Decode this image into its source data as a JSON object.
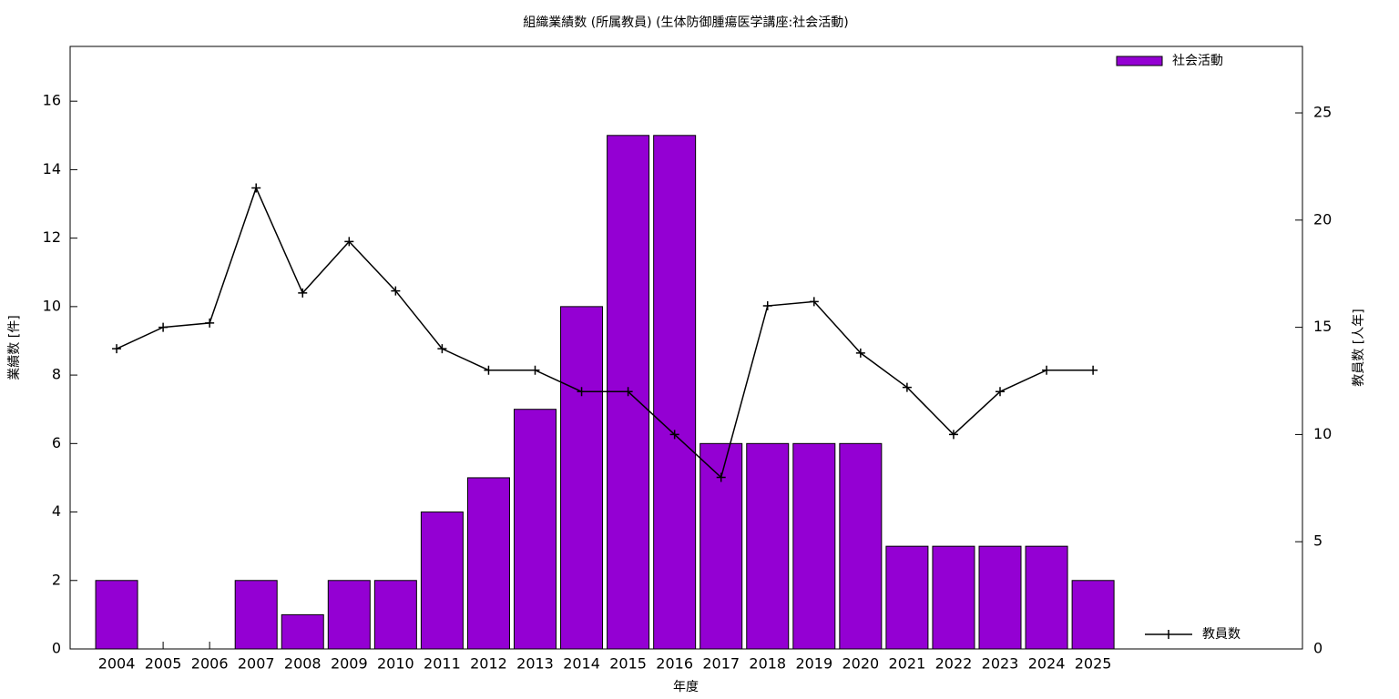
{
  "chart_data": {
    "type": "bar_line",
    "title": "組織業績数 (所属教員) (生体防御腫瘍医学講座:社会活動)",
    "xlabel": "年度",
    "ylabel": "業績数 [件]",
    "y2label": "教員数 [人年]",
    "categories": [
      "2004",
      "2005",
      "2006",
      "2007",
      "2008",
      "2009",
      "2010",
      "2011",
      "2012",
      "2013",
      "2014",
      "2015",
      "2016",
      "2017",
      "2018",
      "2019",
      "2020",
      "2021",
      "2022",
      "2023",
      "2024",
      "2025"
    ],
    "series": [
      {
        "name": "社会活動",
        "type": "bar",
        "color": "#9400d3",
        "values": [
          2,
          0,
          0,
          2,
          1,
          2,
          2,
          4,
          5,
          7,
          10,
          15,
          15,
          6,
          6,
          6,
          6,
          3,
          3,
          3,
          3,
          2
        ]
      },
      {
        "name": "教員数",
        "type": "line",
        "axis": "y2",
        "color": "#000000",
        "values": [
          14,
          15,
          15.2,
          21.5,
          16.6,
          19,
          16.7,
          14,
          13,
          13,
          12,
          12,
          10,
          8,
          16,
          16.2,
          13.8,
          12.2,
          10,
          12,
          13,
          13
        ]
      }
    ],
    "ylim": [
      0,
      17.6
    ],
    "yticks": [
      0,
      2,
      4,
      6,
      8,
      10,
      12,
      14,
      16
    ],
    "y2lim": [
      0,
      28.1
    ],
    "y2ticks": [
      0,
      5,
      10,
      15,
      20,
      25
    ]
  }
}
